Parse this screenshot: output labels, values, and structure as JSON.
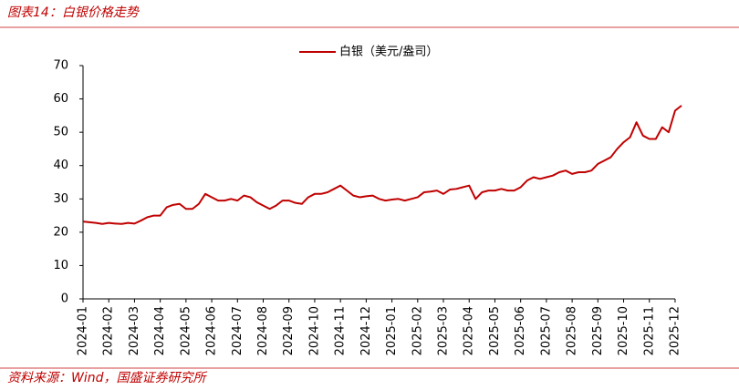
{
  "chart_data": {
    "type": "line",
    "title": "图表14：白银价格走势",
    "source": "资料来源：Wind，国盛证券研究所",
    "categories": [
      "2024-01",
      null,
      null,
      null,
      "2024-02",
      null,
      null,
      null,
      "2024-03",
      null,
      null,
      null,
      "2024-04",
      null,
      null,
      null,
      "2024-05",
      null,
      null,
      null,
      "2024-06",
      null,
      null,
      null,
      "2024-07",
      null,
      null,
      null,
      "2024-08",
      null,
      null,
      null,
      "2024-09",
      null,
      null,
      null,
      "2024-10",
      null,
      null,
      null,
      "2024-11",
      null,
      null,
      null,
      "2024-12",
      null,
      null,
      null,
      "2025-01",
      null,
      null,
      null,
      "2025-02",
      null,
      null,
      null,
      "2025-03",
      null,
      null,
      null,
      "2025-04",
      null,
      null,
      null,
      "2025-05",
      null,
      null,
      null,
      "2025-06",
      null,
      null,
      null,
      "2025-07",
      null,
      null,
      null,
      "2025-08",
      null,
      null,
      null,
      "2025-09",
      null,
      null,
      null,
      "2025-10",
      null,
      null,
      null,
      "2025-11",
      null,
      null,
      null,
      "2025-12",
      null
    ],
    "series": [
      {
        "name": "白银（美元/盎司）",
        "color": "#c00000",
        "values": [
          23.2,
          23.0,
          22.8,
          22.5,
          22.8,
          22.6,
          22.5,
          22.8,
          22.6,
          23.5,
          24.5,
          25.0,
          25.0,
          27.5,
          28.2,
          28.5,
          27.0,
          27.0,
          28.5,
          31.5,
          30.5,
          29.5,
          29.5,
          30.0,
          29.5,
          31.0,
          30.5,
          29.0,
          28.0,
          27.0,
          28.0,
          29.5,
          29.5,
          28.8,
          28.5,
          30.5,
          31.5,
          31.5,
          32.0,
          33.0,
          34.0,
          32.5,
          31.0,
          30.5,
          30.8,
          31.0,
          30.0,
          29.5,
          29.8,
          30.0,
          29.5,
          30.0,
          30.5,
          32.0,
          32.2,
          32.5,
          31.5,
          32.8,
          33.0,
          33.5,
          34.0,
          30.0,
          32.0,
          32.5,
          32.5,
          33.0,
          32.5,
          32.5,
          33.5,
          35.5,
          36.5,
          36.0,
          36.5,
          37.0,
          38.0,
          38.5,
          37.5,
          38.0,
          38.0,
          38.5,
          40.5,
          41.5,
          42.5,
          45.0,
          47.0,
          48.5,
          53.0,
          49.0,
          48.0,
          48.0,
          51.5,
          50.0,
          56.5,
          58.0
        ]
      }
    ],
    "ylim": [
      0,
      70
    ],
    "yticks": [
      0,
      10,
      20,
      30,
      40,
      50,
      60,
      70
    ],
    "grid": false,
    "legend": "top"
  }
}
